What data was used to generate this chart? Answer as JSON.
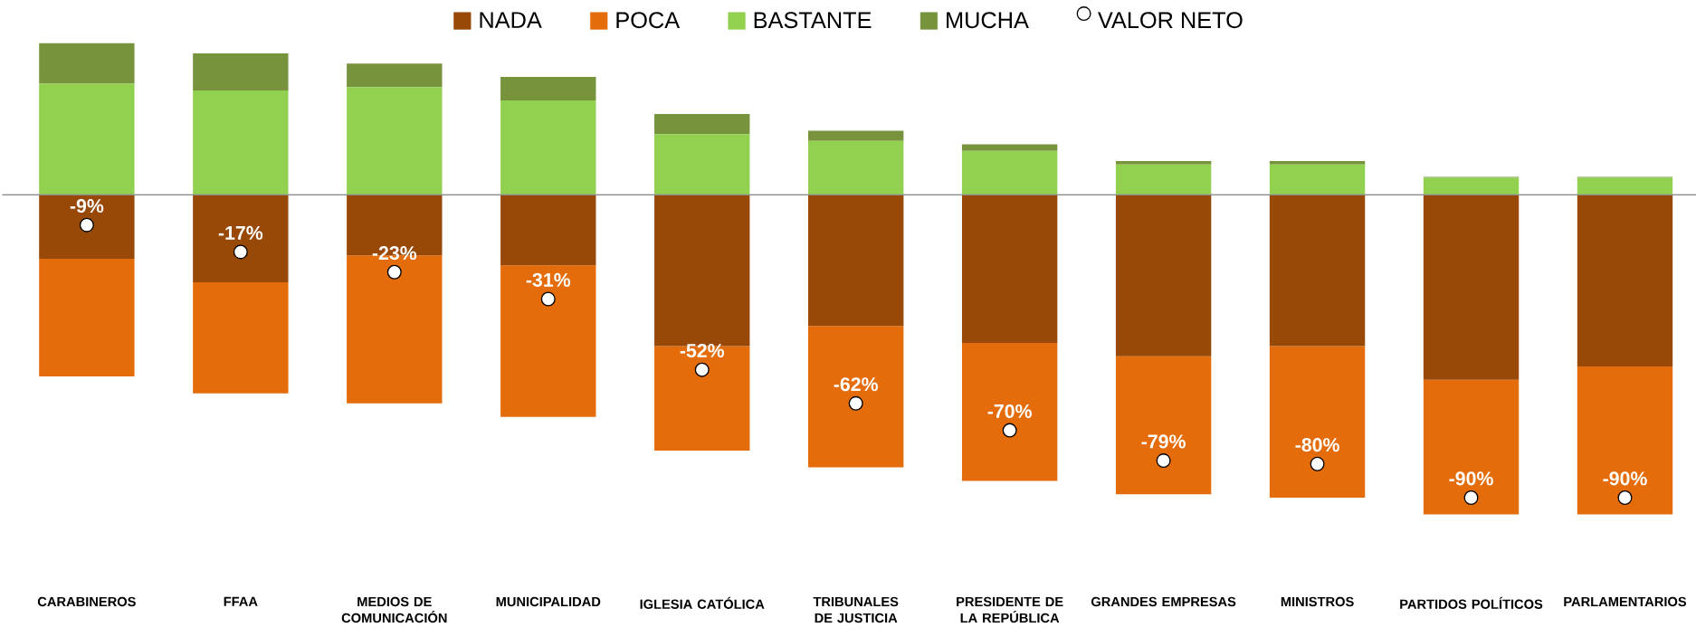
{
  "chart_data": {
    "type": "bar",
    "stacked": true,
    "legend": "top",
    "tick_labels": "x",
    "categories": [
      "CARABINEROS",
      "FFAA",
      "MEDIOS DE COMUNICACIÓN",
      "MUNICIPALIDAD",
      "IGLESIA CATÓLICA",
      "TRIBUNALES DE JUSTICIA",
      "PRESIDENTE DE LA REPÚBLICA",
      "GRANDES EMPRESAS",
      "MINISTROS",
      "PARTIDOS POLÍTICOS",
      "PARLAMENTARIOS"
    ],
    "series": [
      {
        "name": "NADA",
        "color": "#984807",
        "values": [
          -19,
          -26,
          -18,
          -21,
          -45,
          -39,
          -44,
          -48,
          -45,
          -55,
          -51
        ]
      },
      {
        "name": "POCA",
        "color": "#e46c0a",
        "values": [
          -35,
          -33,
          -44,
          -45,
          -31,
          -42,
          -41,
          -41,
          -45,
          -40,
          -44
        ]
      },
      {
        "name": "BASTANTE",
        "color": "#92d050",
        "values": [
          33,
          31,
          32,
          28,
          18,
          16,
          13,
          9,
          9,
          5,
          5
        ]
      },
      {
        "name": "MUCHA",
        "color": "#77933c",
        "values": [
          12,
          11,
          7,
          7,
          6,
          3,
          2,
          1,
          1,
          0.3,
          0.3
        ]
      },
      {
        "name": "VALOR NETO",
        "type": "scatter",
        "color": "#ffffff",
        "values": [
          -9,
          -17,
          -23,
          -31,
          -52,
          -62,
          -70,
          -79,
          -80,
          -90,
          -90
        ],
        "value_labels": [
          "-9%",
          "-17%",
          "-23%",
          "-31%",
          "-52%",
          "-62%",
          "-70%",
          "-79%",
          "-80%",
          "-90%",
          "-90%"
        ]
      }
    ]
  }
}
